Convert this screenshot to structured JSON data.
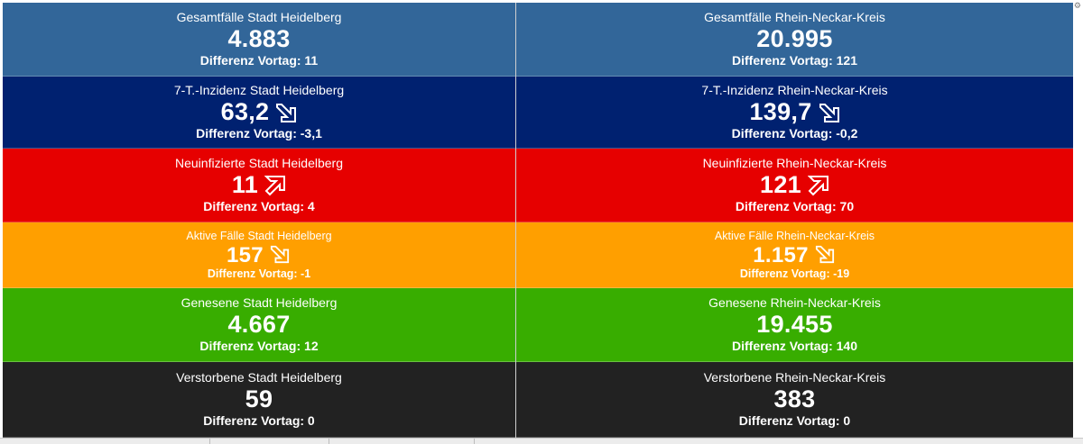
{
  "corner_icon": "⚙",
  "tiles": [
    {
      "title": "Gesamtfälle Stadt Heidelberg",
      "value": "4.883",
      "diff": "Differenz Vortag: 11"
    },
    {
      "title": "Gesamtfälle Rhein-Neckar-Kreis",
      "value": "20.995",
      "diff": "Differenz Vortag: 121"
    },
    {
      "title": "7-T.-Inzidenz Stadt Heidelberg",
      "value": "63,2",
      "diff": "Differenz Vortag: -3,1"
    },
    {
      "title": "7-T.-Inzidenz Rhein-Neckar-Kreis",
      "value": "139,7",
      "diff": "Differenz Vortag: -0,2"
    },
    {
      "title": "Neuinfizierte Stadt Heidelberg",
      "value": "11",
      "diff": "Differenz Vortag: 4"
    },
    {
      "title": "Neuinfizierte Rhein-Neckar-Kreis",
      "value": "121",
      "diff": "Differenz Vortag: 70"
    },
    {
      "title": "Aktive Fälle Stadt Heidelberg",
      "value": "157",
      "diff": "Differenz Vortag: -1"
    },
    {
      "title": "Aktive Fälle Rhein-Neckar-Kreis",
      "value": "1.157",
      "diff": "Differenz Vortag: -19"
    },
    {
      "title": "Genesene Stadt Heidelberg",
      "value": "4.667",
      "diff": "Differenz Vortag: 12"
    },
    {
      "title": "Genesene Rhein-Neckar-Kreis",
      "value": "19.455",
      "diff": "Differenz Vortag: 140"
    },
    {
      "title": "Verstorbene Stadt Heidelberg",
      "value": "59",
      "diff": "Differenz Vortag: 0"
    },
    {
      "title": "Verstorbene Rhein-Neckar-Kreis",
      "value": "383",
      "diff": "Differenz Vortag: 0"
    }
  ],
  "colors": {
    "gesamtfaelle": "#326699",
    "inzidenz": "#002170",
    "neuinfizierte": "#e60000",
    "aktive": "#ff9f00",
    "genesene": "#38ad00",
    "verstorbene": "#222222"
  },
  "trend_icons": {
    "down": "arrow-down-right-icon",
    "up": "arrow-up-right-icon"
  }
}
